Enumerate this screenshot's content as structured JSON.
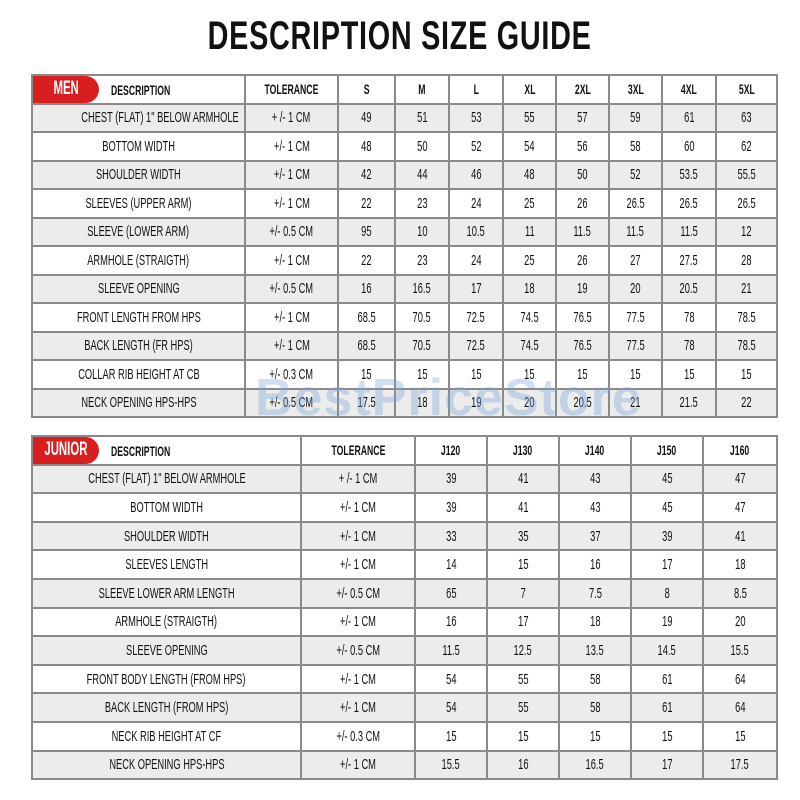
{
  "title": "DESCRIPTION SIZE GUIDE",
  "watermark": "BestPriceStore",
  "accent_color": "#d81e1e",
  "men": {
    "badge": "MEN",
    "description_header": "DESCRIPTION",
    "tolerance_header": "TOLERANCE",
    "sizes": [
      "S",
      "M",
      "L",
      "XL",
      "2XL",
      "3XL",
      "4XL",
      "5XL"
    ],
    "rows": [
      {
        "description": "CHEST (FLAT) 1\" BELOW ARMHOLE",
        "tolerance": "+ /- 1 CM",
        "values": [
          "49",
          "51",
          "53",
          "55",
          "57",
          "59",
          "61",
          "63"
        ]
      },
      {
        "description": "BOTTOM WIDTH",
        "tolerance": "+/- 1 CM",
        "values": [
          "48",
          "50",
          "52",
          "54",
          "56",
          "58",
          "60",
          "62"
        ]
      },
      {
        "description": "SHOULDER WIDTH",
        "tolerance": "+/- 1 CM",
        "values": [
          "42",
          "44",
          "46",
          "48",
          "50",
          "52",
          "53.5",
          "55.5"
        ]
      },
      {
        "description": "SLEEVES (UPPER ARM)",
        "tolerance": "+/- 1 CM",
        "values": [
          "22",
          "23",
          "24",
          "25",
          "26",
          "26.5",
          "26.5",
          "26.5"
        ]
      },
      {
        "description": "SLEEVE (LOWER ARM)",
        "tolerance": "+/- 0.5 CM",
        "values": [
          "95",
          "10",
          "10.5",
          "11",
          "11.5",
          "11.5",
          "11.5",
          "12"
        ]
      },
      {
        "description": "ARMHOLE (STRAIGTH)",
        "tolerance": "+/- 1 CM",
        "values": [
          "22",
          "23",
          "24",
          "25",
          "26",
          "27",
          "27.5",
          "28"
        ]
      },
      {
        "description": "SLEEVE OPENING",
        "tolerance": "+/- 0.5 CM",
        "values": [
          "16",
          "16.5",
          "17",
          "18",
          "19",
          "20",
          "20.5",
          "21"
        ]
      },
      {
        "description": "FRONT LENGTH FROM HPS",
        "tolerance": "+/- 1 CM",
        "values": [
          "68.5",
          "70.5",
          "72.5",
          "74.5",
          "76.5",
          "77.5",
          "78",
          "78.5"
        ]
      },
      {
        "description": "BACK LENGTH (FR HPS)",
        "tolerance": "+/- 1 CM",
        "values": [
          "68.5",
          "70.5",
          "72.5",
          "74.5",
          "76.5",
          "77.5",
          "78",
          "78.5"
        ]
      },
      {
        "description": "COLLAR RIB HEIGHT AT CB",
        "tolerance": "+/- 0.3 CM",
        "values": [
          "15",
          "15",
          "15",
          "15",
          "15",
          "15",
          "15",
          "15"
        ]
      },
      {
        "description": "NECK OPENING HPS-HPS",
        "tolerance": "+/- 0.5 CM",
        "values": [
          "17.5",
          "18",
          "19",
          "20",
          "20.5",
          "21",
          "21.5",
          "22"
        ]
      }
    ]
  },
  "junior": {
    "badge": "JUNIOR",
    "description_header": "DESCRIPTION",
    "tolerance_header": "TOLERANCE",
    "sizes": [
      "J120",
      "J130",
      "J140",
      "J150",
      "J160"
    ],
    "rows": [
      {
        "description": "CHEST (FLAT) 1\" BELOW ARMHOLE",
        "tolerance": "+ /- 1 CM",
        "values": [
          "39",
          "41",
          "43",
          "45",
          "47"
        ]
      },
      {
        "description": "BOTTOM WIDTH",
        "tolerance": "+/- 1 CM",
        "values": [
          "39",
          "41",
          "43",
          "45",
          "47"
        ]
      },
      {
        "description": "SHOULDER WIDTH",
        "tolerance": "+/- 1 CM",
        "values": [
          "33",
          "35",
          "37",
          "39",
          "41"
        ]
      },
      {
        "description": "SLEEVES LENGTH",
        "tolerance": "+/- 1 CM",
        "values": [
          "14",
          "15",
          "16",
          "17",
          "18"
        ]
      },
      {
        "description": "SLEEVE LOWER ARM LENGTH",
        "tolerance": "+/- 0.5 CM",
        "values": [
          "65",
          "7",
          "7.5",
          "8",
          "8.5"
        ]
      },
      {
        "description": "ARMHOLE (STRAIGTH)",
        "tolerance": "+/- 1 CM",
        "values": [
          "16",
          "17",
          "18",
          "19",
          "20"
        ]
      },
      {
        "description": "SLEEVE OPENING",
        "tolerance": "+/- 0.5 CM",
        "values": [
          "11.5",
          "12.5",
          "13.5",
          "14.5",
          "15.5"
        ]
      },
      {
        "description": "FRONT BODY LENGTH (FROM HPS)",
        "tolerance": "+/- 1 CM",
        "values": [
          "54",
          "55",
          "58",
          "61",
          "64"
        ]
      },
      {
        "description": "BACK LENGTH (FROM HPS)",
        "tolerance": "+/- 1 CM",
        "values": [
          "54",
          "55",
          "58",
          "61",
          "64"
        ]
      },
      {
        "description": "NECK RIB HEIGHT AT CF",
        "tolerance": "+/- 0.3 CM",
        "values": [
          "15",
          "15",
          "15",
          "15",
          "15"
        ]
      },
      {
        "description": "NECK OPENING HPS-HPS",
        "tolerance": "+/- 1 CM",
        "values": [
          "15.5",
          "16",
          "16.5",
          "17",
          "17.5"
        ]
      }
    ]
  }
}
